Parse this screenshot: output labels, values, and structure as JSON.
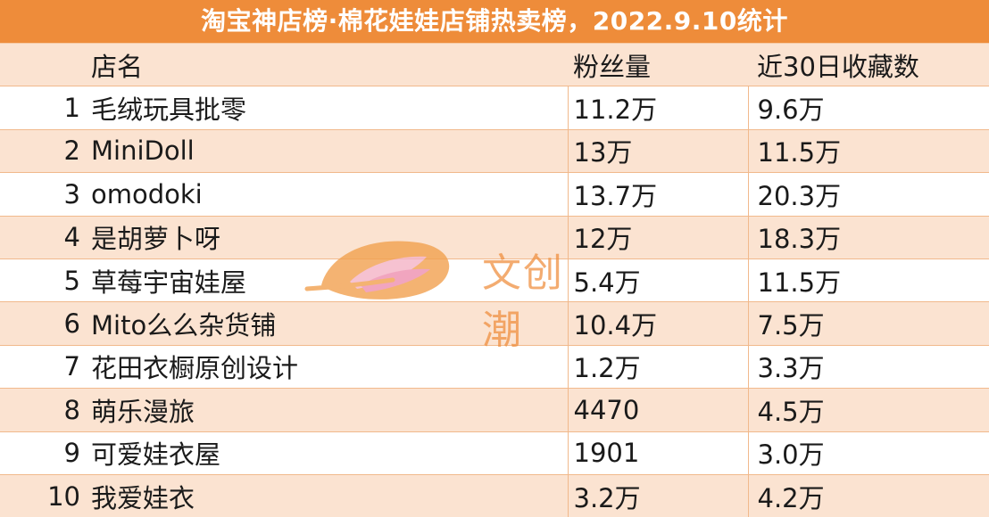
{
  "title": "淘宝神店榜·棉花娃娃店铺热卖榜，2022.9.10统计",
  "columns": {
    "rank": "",
    "name": "店名",
    "fans": "粉丝量",
    "favorites": "近30日收藏数"
  },
  "rows": [
    {
      "rank": "1",
      "name": "毛绒玩具批零",
      "fans": "11.2万",
      "favorites": "9.6万"
    },
    {
      "rank": "2",
      "name": "MiniDoll",
      "fans": "13万",
      "favorites": "11.5万"
    },
    {
      "rank": "3",
      "name": "omodoki",
      "fans": "13.7万",
      "favorites": "20.3万"
    },
    {
      "rank": "4",
      "name": "是胡萝卜呀",
      "fans": "12万",
      "favorites": "18.3万"
    },
    {
      "rank": "5",
      "name": "草莓宇宙娃屋",
      "fans": "5.4万",
      "favorites": "11.5万"
    },
    {
      "rank": "6",
      "name": "Mito么么杂货铺",
      "fans": "10.4万",
      "favorites": "7.5万"
    },
    {
      "rank": "7",
      "name": "花田衣橱原创设计",
      "fans": "1.2万",
      "favorites": "3.3万"
    },
    {
      "rank": "8",
      "name": "萌乐漫旅",
      "fans": "4470",
      "favorites": "4.5万"
    },
    {
      "rank": "9",
      "name": "可爱娃衣屋",
      "fans": "1901",
      "favorites": "3.0万"
    },
    {
      "rank": "10",
      "name": "我爱娃衣",
      "fans": "3.2万",
      "favorites": "4.2万"
    }
  ],
  "watermark": {
    "text": "文创潮",
    "icon": "leaf-logo-icon"
  },
  "colors": {
    "header": "#ee8c3a",
    "row_alt": "#fbe3d1",
    "border": "#f1b98c"
  }
}
